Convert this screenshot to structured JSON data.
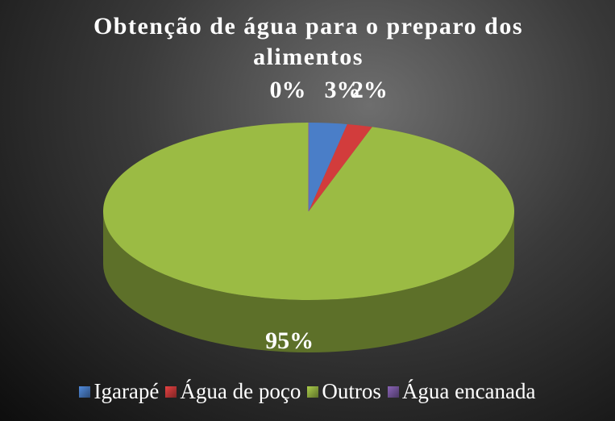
{
  "chart_data": {
    "type": "pie",
    "title": "Obtenção de água para o preparo dos alimentos",
    "categories": [
      "Igarapé",
      "Água de poço",
      "Outros",
      "Água encanada"
    ],
    "values": [
      3,
      2,
      95,
      0
    ],
    "value_labels": [
      "3%",
      "2%",
      "95%",
      "0%"
    ],
    "colors": [
      "#4a7ec8",
      "#d23c3c",
      "#9bbb44",
      "#7d5ba6"
    ],
    "legend": "bottom"
  }
}
